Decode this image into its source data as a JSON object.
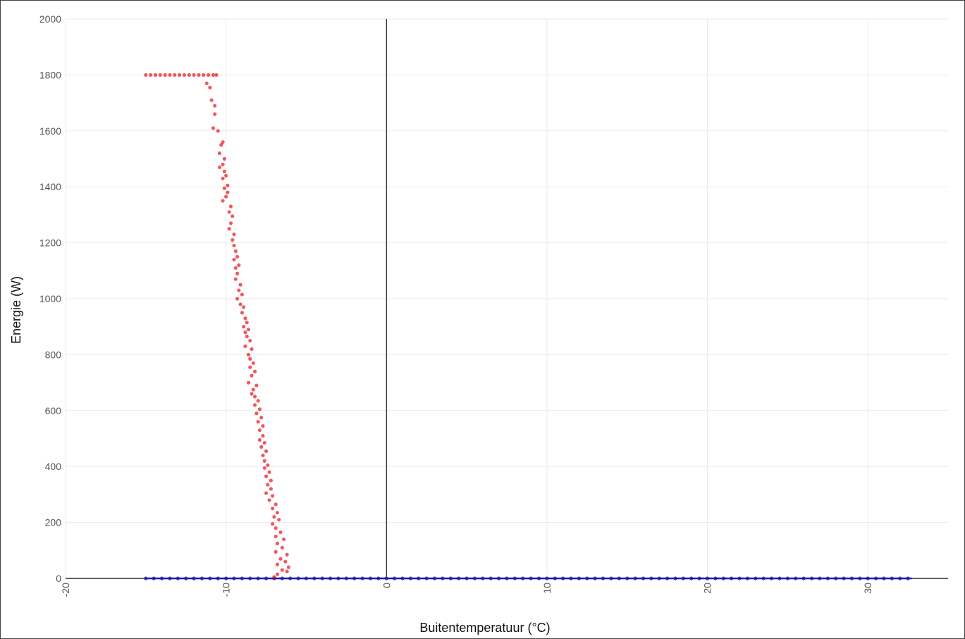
{
  "chart_data": {
    "type": "scatter",
    "xlabel": "Buitentemperatuur (°C)",
    "ylabel": "Energie (W)",
    "xlim": [
      -20,
      35
    ],
    "ylim": [
      0,
      2000
    ],
    "x_ticks": [
      -20,
      -10,
      0,
      10,
      20,
      30
    ],
    "x_tick_labels": [
      "-20",
      "-10",
      "0",
      "10",
      "20",
      "30"
    ],
    "y_ticks": [
      0,
      200,
      400,
      600,
      800,
      1000,
      1200,
      1400,
      1600,
      1800,
      2000
    ],
    "y_tick_labels": [
      "0",
      "200",
      "400",
      "600",
      "800",
      "1000",
      "1200",
      "1400",
      "1600",
      "1800",
      "2000"
    ],
    "grid": true,
    "legend": "none",
    "colors": {
      "heating": "#e8141a",
      "baseline": "#1a1aa8",
      "axis": "#000000",
      "grid": "#ebebeb"
    },
    "series": [
      {
        "points": [
          [
            -15,
            1800
          ],
          [
            -14.7,
            1800
          ],
          [
            -14.4,
            1800
          ],
          [
            -14.1,
            1800
          ],
          [
            -13.8,
            1800
          ],
          [
            -13.5,
            1800
          ],
          [
            -13.2,
            1800
          ],
          [
            -12.9,
            1800
          ],
          [
            -12.6,
            1800
          ],
          [
            -12.3,
            1800
          ],
          [
            -12,
            1800
          ],
          [
            -11.7,
            1800
          ],
          [
            -11.4,
            1800
          ],
          [
            -11.1,
            1800
          ],
          [
            -10.8,
            1800
          ],
          [
            -10.6,
            1800
          ],
          [
            -11.2,
            1770
          ],
          [
            -11,
            1755
          ],
          [
            -10.9,
            1710
          ],
          [
            -10.7,
            1690
          ],
          [
            -10.7,
            1660
          ],
          [
            -10.8,
            1610
          ],
          [
            -10.5,
            1600
          ],
          [
            -10.2,
            1560
          ],
          [
            -10.3,
            1550
          ],
          [
            -10.4,
            1520
          ],
          [
            -10.1,
            1500
          ],
          [
            -10.2,
            1480
          ],
          [
            -10.4,
            1470
          ],
          [
            -10.1,
            1455
          ],
          [
            -10,
            1440
          ],
          [
            -10.2,
            1430
          ],
          [
            -9.9,
            1405
          ],
          [
            -10.1,
            1395
          ],
          [
            -9.9,
            1380
          ],
          [
            -10,
            1365
          ],
          [
            -10.2,
            1350
          ],
          [
            -9.7,
            1330
          ],
          [
            -9.8,
            1310
          ],
          [
            -9.6,
            1295
          ],
          [
            -9.7,
            1270
          ],
          [
            -9.8,
            1250
          ],
          [
            -9.5,
            1230
          ],
          [
            -9.6,
            1210
          ],
          [
            -9.5,
            1190
          ],
          [
            -9.4,
            1170
          ],
          [
            -9.3,
            1150
          ],
          [
            -9.5,
            1140
          ],
          [
            -9.2,
            1120
          ],
          [
            -9.4,
            1110
          ],
          [
            -9.3,
            1090
          ],
          [
            -9.4,
            1070
          ],
          [
            -9.1,
            1050
          ],
          [
            -9.2,
            1030
          ],
          [
            -9,
            1015
          ],
          [
            -9.3,
            1000
          ],
          [
            -9.1,
            980
          ],
          [
            -8.9,
            970
          ],
          [
            -9,
            950
          ],
          [
            -8.8,
            930
          ],
          [
            -8.7,
            915
          ],
          [
            -8.9,
            900
          ],
          [
            -8.6,
            890
          ],
          [
            -8.8,
            880
          ],
          [
            -8.7,
            865
          ],
          [
            -8.5,
            850
          ],
          [
            -8.8,
            830
          ],
          [
            -8.4,
            820
          ],
          [
            -8.6,
            800
          ],
          [
            -8.5,
            785
          ],
          [
            -8.3,
            770
          ],
          [
            -8.5,
            755
          ],
          [
            -8.2,
            740
          ],
          [
            -8.4,
            725
          ],
          [
            -8.6,
            700
          ],
          [
            -8.1,
            690
          ],
          [
            -8.3,
            675
          ],
          [
            -8.4,
            660
          ],
          [
            -8.2,
            650
          ],
          [
            -8,
            635
          ],
          [
            -8.2,
            620
          ],
          [
            -7.9,
            605
          ],
          [
            -8.1,
            590
          ],
          [
            -7.8,
            575
          ],
          [
            -8,
            560
          ],
          [
            -7.7,
            545
          ],
          [
            -7.9,
            530
          ],
          [
            -7.7,
            510
          ],
          [
            -7.9,
            495
          ],
          [
            -7.6,
            485
          ],
          [
            -7.8,
            470
          ],
          [
            -7.5,
            455
          ],
          [
            -7.7,
            440
          ],
          [
            -7.6,
            420
          ],
          [
            -7.4,
            405
          ],
          [
            -7.6,
            395
          ],
          [
            -7.3,
            380
          ],
          [
            -7.5,
            365
          ],
          [
            -7.2,
            350
          ],
          [
            -7.4,
            335
          ],
          [
            -7.2,
            320
          ],
          [
            -7.5,
            305
          ],
          [
            -7.1,
            295
          ],
          [
            -7.3,
            280
          ],
          [
            -6.9,
            265
          ],
          [
            -7.1,
            250
          ],
          [
            -6.8,
            235
          ],
          [
            -7,
            220
          ],
          [
            -6.7,
            210
          ],
          [
            -7.1,
            195
          ],
          [
            -6.9,
            180
          ],
          [
            -6.6,
            165
          ],
          [
            -6.9,
            150
          ],
          [
            -6.4,
            140
          ],
          [
            -6.8,
            125
          ],
          [
            -6.5,
            110
          ],
          [
            -6.9,
            95
          ],
          [
            -6.2,
            85
          ],
          [
            -6.6,
            70
          ],
          [
            -6.3,
            60
          ],
          [
            -6.8,
            50
          ],
          [
            -6.1,
            40
          ],
          [
            -6.5,
            30
          ],
          [
            -6.2,
            25
          ],
          [
            -6.8,
            15
          ],
          [
            -7,
            5
          ]
        ]
      },
      {
        "x_range": [
          -15,
          32.7
        ],
        "y": 0
      }
    ]
  }
}
